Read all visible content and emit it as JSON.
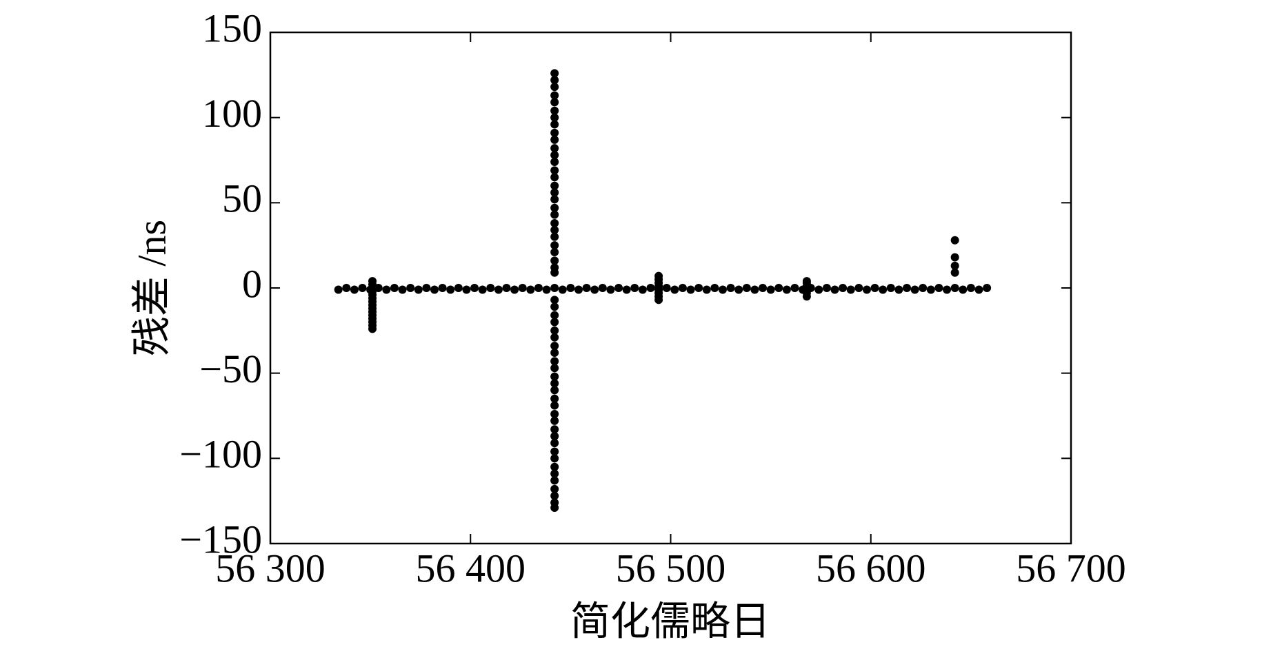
{
  "chart_data": {
    "type": "scatter",
    "xlabel": "简化儒略日",
    "ylabel": "残差 /ns",
    "color": "#000000",
    "xlim": [
      56300,
      56700
    ],
    "xticks": [
      {
        "value": 56300,
        "label": "56 300"
      },
      {
        "value": 56400,
        "label": "56 400"
      },
      {
        "value": 56500,
        "label": "56 500"
      },
      {
        "value": 56600,
        "label": "56 600"
      },
      {
        "value": 56700,
        "label": "56 700"
      }
    ],
    "ylim": [
      -150,
      150
    ],
    "yticks": [
      {
        "value": -150,
        "label": "−150"
      },
      {
        "value": -100,
        "label": "−100"
      },
      {
        "value": -50,
        "label": "−50"
      },
      0,
      50,
      100,
      150
    ],
    "grid": false,
    "x": [
      56334,
      56338,
      56342,
      56346,
      56350,
      56354,
      56358,
      56362,
      56366,
      56370,
      56374,
      56378,
      56382,
      56386,
      56390,
      56394,
      56398,
      56402,
      56406,
      56410,
      56414,
      56418,
      56422,
      56426,
      56430,
      56434,
      56438,
      56442,
      56446,
      56450,
      56454,
      56458,
      56462,
      56466,
      56470,
      56474,
      56478,
      56482,
      56486,
      56490,
      56494,
      56498,
      56502,
      56506,
      56510,
      56514,
      56518,
      56522,
      56526,
      56530,
      56534,
      56538,
      56542,
      56546,
      56550,
      56554,
      56558,
      56562,
      56566,
      56570,
      56574,
      56578,
      56582,
      56586,
      56590,
      56594,
      56598,
      56602,
      56606,
      56610,
      56614,
      56618,
      56622,
      56626,
      56630,
      56634,
      56638,
      56642,
      56646,
      56650,
      56654,
      56658,
      56442,
      56442,
      56442,
      56442,
      56442,
      56442,
      56442,
      56442,
      56442,
      56442,
      56442,
      56442,
      56442,
      56442,
      56442,
      56442,
      56442,
      56442,
      56442,
      56442,
      56442,
      56442,
      56442,
      56442,
      56442,
      56442,
      56442,
      56442,
      56442,
      56442,
      56442,
      56442,
      56442,
      56442,
      56442,
      56442,
      56442,
      56442,
      56442,
      56442,
      56442,
      56442,
      56442,
      56442,
      56442,
      56442,
      56442,
      56442,
      56442,
      56442,
      56442,
      56442,
      56442,
      56442,
      56442,
      56442,
      56442,
      56351,
      56351,
      56351,
      56351,
      56351,
      56351,
      56351,
      56351,
      56351,
      56351,
      56351,
      56351,
      56351,
      56351,
      56494,
      56494,
      56494,
      56494,
      56494,
      56494,
      56494,
      56494,
      56568,
      56568,
      56568,
      56568,
      56568,
      56568,
      56642,
      56642,
      56642,
      56642
    ],
    "y": [
      -1,
      0,
      -1,
      0,
      -1,
      0,
      -1,
      0,
      -1,
      0,
      -1,
      0,
      -1,
      0,
      -1,
      0,
      -1,
      0,
      -1,
      0,
      -1,
      0,
      -1,
      0,
      -1,
      0,
      -1,
      0,
      -1,
      0,
      -1,
      0,
      -1,
      0,
      -1,
      0,
      -1,
      0,
      -1,
      0,
      -1,
      0,
      -1,
      0,
      -1,
      0,
      -1,
      0,
      -1,
      0,
      -1,
      0,
      -1,
      0,
      -1,
      0,
      -1,
      0,
      -1,
      0,
      -1,
      0,
      -1,
      0,
      -1,
      0,
      -1,
      0,
      -1,
      0,
      -1,
      0,
      -1,
      0,
      -1,
      0,
      -1,
      0,
      -1,
      0,
      -1,
      0,
      126,
      122,
      118,
      113,
      109,
      104,
      100,
      96,
      91,
      87,
      82,
      78,
      74,
      69,
      65,
      60,
      56,
      52,
      47,
      43,
      38,
      34,
      30,
      25,
      21,
      16,
      12,
      9,
      -7,
      -11,
      -16,
      -20,
      -25,
      -29,
      -34,
      -38,
      -43,
      -47,
      -52,
      -56,
      -60,
      -65,
      -69,
      -74,
      -78,
      -83,
      -87,
      -91,
      -96,
      -100,
      -105,
      -109,
      -113,
      -118,
      -122,
      -126,
      -129,
      -24,
      -22,
      -20,
      -18,
      -16,
      -14,
      -12,
      -10,
      -8,
      -6,
      -4,
      -2,
      2,
      4,
      -7,
      -5,
      -3,
      -1,
      1,
      3,
      5,
      7,
      -5,
      -3,
      -1,
      1,
      3,
      4,
      9,
      13,
      18,
      28
    ]
  }
}
